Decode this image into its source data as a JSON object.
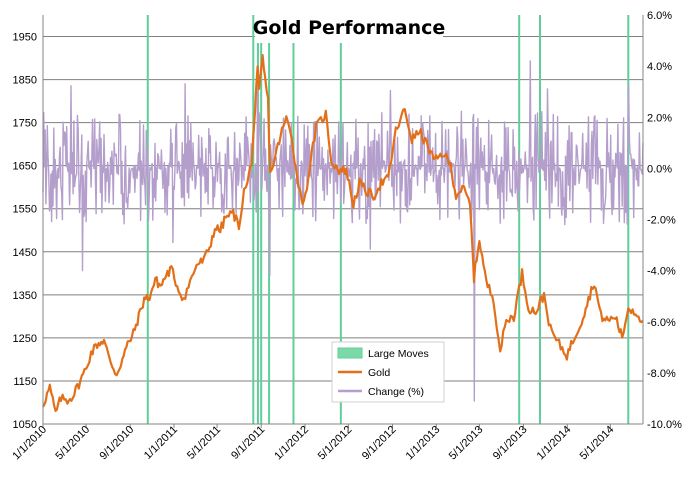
{
  "chart_data": {
    "type": "line",
    "title": "Gold Performance",
    "xlabel": "",
    "ylabel": "",
    "grid": true,
    "legend_position": "bottom-center",
    "colors": {
      "gold": "#e2701a",
      "change": "#b49fcc",
      "large_moves": "#5fcf99",
      "large_moves_fill": "#7dd8a8",
      "grid": "#7f7f7f",
      "title_box": "#ffffff"
    },
    "x_axis": {
      "range": [
        "1/1/2010",
        "7/31/2014"
      ],
      "tick_labels": [
        "1/1/2010",
        "5/1/2010",
        "9/1/2010",
        "1/1/2011",
        "5/1/2011",
        "9/1/2011",
        "1/1/2012",
        "5/1/2012",
        "9/1/2012",
        "1/1/2013",
        "5/1/2013",
        "9/1/2013",
        "1/1/2014",
        "5/1/2014"
      ]
    },
    "y_axis_left": {
      "label": "",
      "ylim": [
        1050,
        2000
      ],
      "tick_values": [
        1050,
        1150,
        1250,
        1350,
        1450,
        1550,
        1650,
        1750,
        1850,
        1950
      ],
      "tick_labels": [
        "1050",
        "1150",
        "1250",
        "1350",
        "1450",
        "1550",
        "1650",
        "1750",
        "1850",
        "1950"
      ]
    },
    "y_axis_right": {
      "label": "",
      "ylim": [
        -10,
        6
      ],
      "tick_values": [
        -10,
        -8,
        -6,
        -4,
        -2,
        0,
        2,
        4,
        6
      ],
      "tick_labels": [
        "-10.0%",
        "-8.0%",
        "-6.0%",
        "-4.0%",
        "-2.0%",
        "0.0%",
        "2.0%",
        "4.0%",
        "6.0%"
      ]
    },
    "legend": [
      {
        "key": "large_moves",
        "label": "Large Moves"
      },
      {
        "key": "gold",
        "label": "Gold"
      },
      {
        "key": "change",
        "label": "Change (%)"
      }
    ],
    "large_moves_dates": [
      "10/20/2010",
      "8/10/2011",
      "8/23/2011",
      "9/1/2011",
      "9/23/2011",
      "11/30/2011",
      "4/10/2012",
      "8/20/2013",
      "10/17/2013",
      "6/20/2014"
    ],
    "series": [
      {
        "name": "Gold",
        "axis": "left",
        "x": [
          "1/1/2010",
          "1/20/2010",
          "2/5/2010",
          "2/20/2010",
          "3/10/2010",
          "3/25/2010",
          "4/15/2010",
          "5/1/2010",
          "5/15/2010",
          "6/1/2010",
          "6/20/2010",
          "7/5/2010",
          "7/25/2010",
          "8/10/2010",
          "8/25/2010",
          "9/10/2010",
          "9/25/2010",
          "10/10/2010",
          "10/25/2010",
          "11/10/2010",
          "11/25/2010",
          "12/10/2010",
          "12/25/2010",
          "1/10/2011",
          "1/28/2011",
          "2/15/2011",
          "3/5/2011",
          "3/25/2011",
          "4/10/2011",
          "4/25/2011",
          "5/10/2011",
          "5/25/2011",
          "6/15/2011",
          "7/1/2011",
          "7/15/2011",
          "7/25/2011",
          "8/5/2011",
          "8/15/2011",
          "8/22/2011",
          "8/26/2011",
          "9/5/2011",
          "9/12/2011",
          "9/20/2011",
          "9/26/2011",
          "10/10/2011",
          "10/25/2011",
          "11/10/2011",
          "11/25/2011",
          "12/10/2011",
          "12/29/2011",
          "1/15/2012",
          "2/1/2012",
          "2/28/2012",
          "3/15/2012",
          "4/5/2012",
          "4/25/2012",
          "5/15/2012",
          "6/1/2012",
          "6/20/2012",
          "7/10/2012",
          "8/1/2012",
          "8/20/2012",
          "9/10/2012",
          "10/5/2012",
          "10/25/2012",
          "11/15/2012",
          "12/5/2012",
          "12/28/2012",
          "1/20/2013",
          "2/10/2013",
          "2/25/2013",
          "3/15/2013",
          "4/5/2013",
          "4/12/2013",
          "4/16/2013",
          "5/1/2013",
          "5/20/2013",
          "6/10/2013",
          "6/28/2013",
          "7/15/2013",
          "8/5/2013",
          "8/28/2013",
          "9/15/2013",
          "10/5/2013",
          "10/28/2013",
          "11/15/2013",
          "12/5/2013",
          "12/31/2013",
          "1/20/2014",
          "2/10/2014",
          "3/1/2014",
          "3/17/2014",
          "4/5/2014",
          "4/25/2014",
          "5/15/2014",
          "6/3/2014",
          "6/20/2014",
          "7/10/2014",
          "7/31/2014"
        ],
        "values": [
          1095,
          1135,
          1075,
          1110,
          1105,
          1115,
          1150,
          1180,
          1215,
          1235,
          1245,
          1200,
          1165,
          1200,
          1235,
          1260,
          1300,
          1340,
          1345,
          1385,
          1370,
          1395,
          1410,
          1370,
          1340,
          1380,
          1420,
          1430,
          1460,
          1505,
          1500,
          1530,
          1540,
          1510,
          1590,
          1610,
          1660,
          1780,
          1870,
          1820,
          1900,
          1850,
          1800,
          1630,
          1670,
          1720,
          1760,
          1720,
          1620,
          1560,
          1650,
          1740,
          1770,
          1660,
          1640,
          1640,
          1560,
          1610,
          1590,
          1580,
          1610,
          1620,
          1730,
          1780,
          1710,
          1730,
          1700,
          1660,
          1680,
          1650,
          1580,
          1600,
          1560,
          1450,
          1390,
          1480,
          1380,
          1340,
          1220,
          1290,
          1300,
          1400,
          1320,
          1310,
          1350,
          1270,
          1240,
          1210,
          1250,
          1290,
          1340,
          1380,
          1300,
          1290,
          1300,
          1250,
          1320,
          1310,
          1290
        ]
      },
      {
        "name": "Change (%)",
        "axis": "right",
        "frequency": "daily",
        "notable_points": [
          {
            "x": "4/16/2013",
            "y": -9.1
          },
          {
            "x": "6/20/2014",
            "y": 3.3
          },
          {
            "x": "9/20/2013",
            "y": 4.2
          },
          {
            "x": "9/25/2011",
            "y": -4.2
          },
          {
            "x": "4/20/2010",
            "y": -4.0
          },
          {
            "x": "8/21/2011",
            "y": 3.5
          },
          {
            "x": "12/29/2010",
            "y": -2.9
          }
        ],
        "typical_range": [
          -2.0,
          2.0
        ]
      }
    ]
  }
}
